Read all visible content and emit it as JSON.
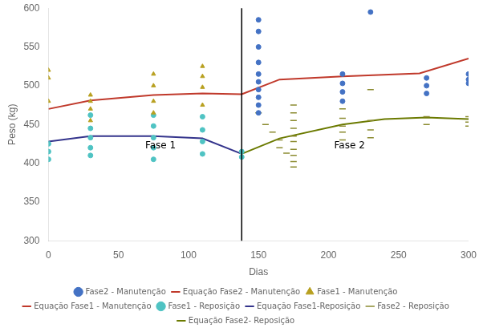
{
  "chart_data": {
    "type": "scatter",
    "xlabel": "Dias",
    "ylabel": "Peso (kg)",
    "xlim": [
      0,
      300
    ],
    "ylim": [
      300,
      600
    ],
    "xticks": [
      0,
      50,
      100,
      150,
      200,
      250,
      300
    ],
    "yticks": [
      300,
      350,
      400,
      450,
      500,
      550,
      600
    ],
    "grid": false,
    "legend": "bottom",
    "vlines": [
      138
    ],
    "annotations": [
      {
        "text": "Fase 1",
        "x": 80,
        "y": 422
      },
      {
        "text": "Fase 2",
        "x": 215,
        "y": 422
      }
    ],
    "series": [
      {
        "name": "Fase2 - Manutenção",
        "type": "scatter",
        "marker": "circle",
        "color": "#4472c4",
        "x": [
          150,
          150,
          150,
          150,
          150,
          150,
          150,
          150,
          150,
          150,
          210,
          210,
          210,
          210,
          230,
          270,
          270,
          270,
          300,
          300,
          300
        ],
        "values": [
          585,
          570,
          550,
          530,
          515,
          505,
          495,
          485,
          475,
          465,
          515,
          503,
          492,
          480,
          595,
          510,
          500,
          490,
          515,
          508,
          503
        ]
      },
      {
        "name": "Equação Fase2 - Manutenção",
        "type": "line",
        "color": "#c0392b",
        "x": [
          138,
          165,
          210,
          265,
          300
        ],
        "values": [
          489,
          508,
          512,
          516,
          535
        ]
      },
      {
        "name": "Fase1 - Manutenção",
        "type": "scatter",
        "marker": "triangle",
        "color": "#b8a020",
        "x": [
          0,
          0,
          0,
          30,
          30,
          30,
          30,
          75,
          75,
          75,
          75,
          110,
          110,
          110,
          110
        ],
        "values": [
          520,
          510,
          480,
          488,
          480,
          470,
          455,
          515,
          500,
          480,
          465,
          525,
          512,
          498,
          475
        ]
      },
      {
        "name": "Equação Fase1 - Manutenção",
        "type": "line",
        "color": "#c0392b",
        "x": [
          0,
          30,
          75,
          110,
          138
        ],
        "values": [
          470,
          481,
          488,
          490,
          489
        ]
      },
      {
        "name": "Fase1 - Reposição",
        "type": "scatter",
        "marker": "circle",
        "color": "#4fc3c3",
        "x": [
          0,
          0,
          0,
          30,
          30,
          30,
          30,
          30,
          75,
          75,
          75,
          75,
          75,
          110,
          110,
          110,
          110,
          138,
          138
        ],
        "values": [
          425,
          415,
          405,
          462,
          445,
          433,
          420,
          410,
          462,
          448,
          433,
          420,
          405,
          460,
          443,
          428,
          412,
          415,
          408
        ]
      },
      {
        "name": "Equação Fase1-Reposição",
        "type": "line",
        "color": "#34348c",
        "x": [
          0,
          30,
          75,
          110,
          138
        ],
        "values": [
          428,
          435,
          435,
          432,
          412
        ]
      },
      {
        "name": "Fase2 - Reposição",
        "type": "scatter",
        "marker": "dash",
        "color": "#8b8b30",
        "x": [
          150,
          155,
          160,
          165,
          165,
          170,
          175,
          175,
          175,
          175,
          175,
          175,
          175,
          175,
          175,
          175,
          210,
          210,
          210,
          210,
          210,
          230,
          230,
          230,
          230,
          270,
          270,
          300,
          300,
          300
        ],
        "values": [
          465,
          450,
          440,
          430,
          420,
          413,
          475,
          465,
          455,
          445,
          435,
          428,
          418,
          410,
          402,
          395,
          470,
          458,
          448,
          440,
          430,
          495,
          455,
          443,
          433,
          460,
          450,
          460,
          453,
          448
        ]
      },
      {
        "name": "Equação Fase2- Reposição",
        "type": "line",
        "color": "#6b7a00",
        "x": [
          138,
          165,
          210,
          240,
          270,
          300
        ],
        "values": [
          412,
          432,
          450,
          457,
          459,
          457
        ]
      }
    ]
  }
}
